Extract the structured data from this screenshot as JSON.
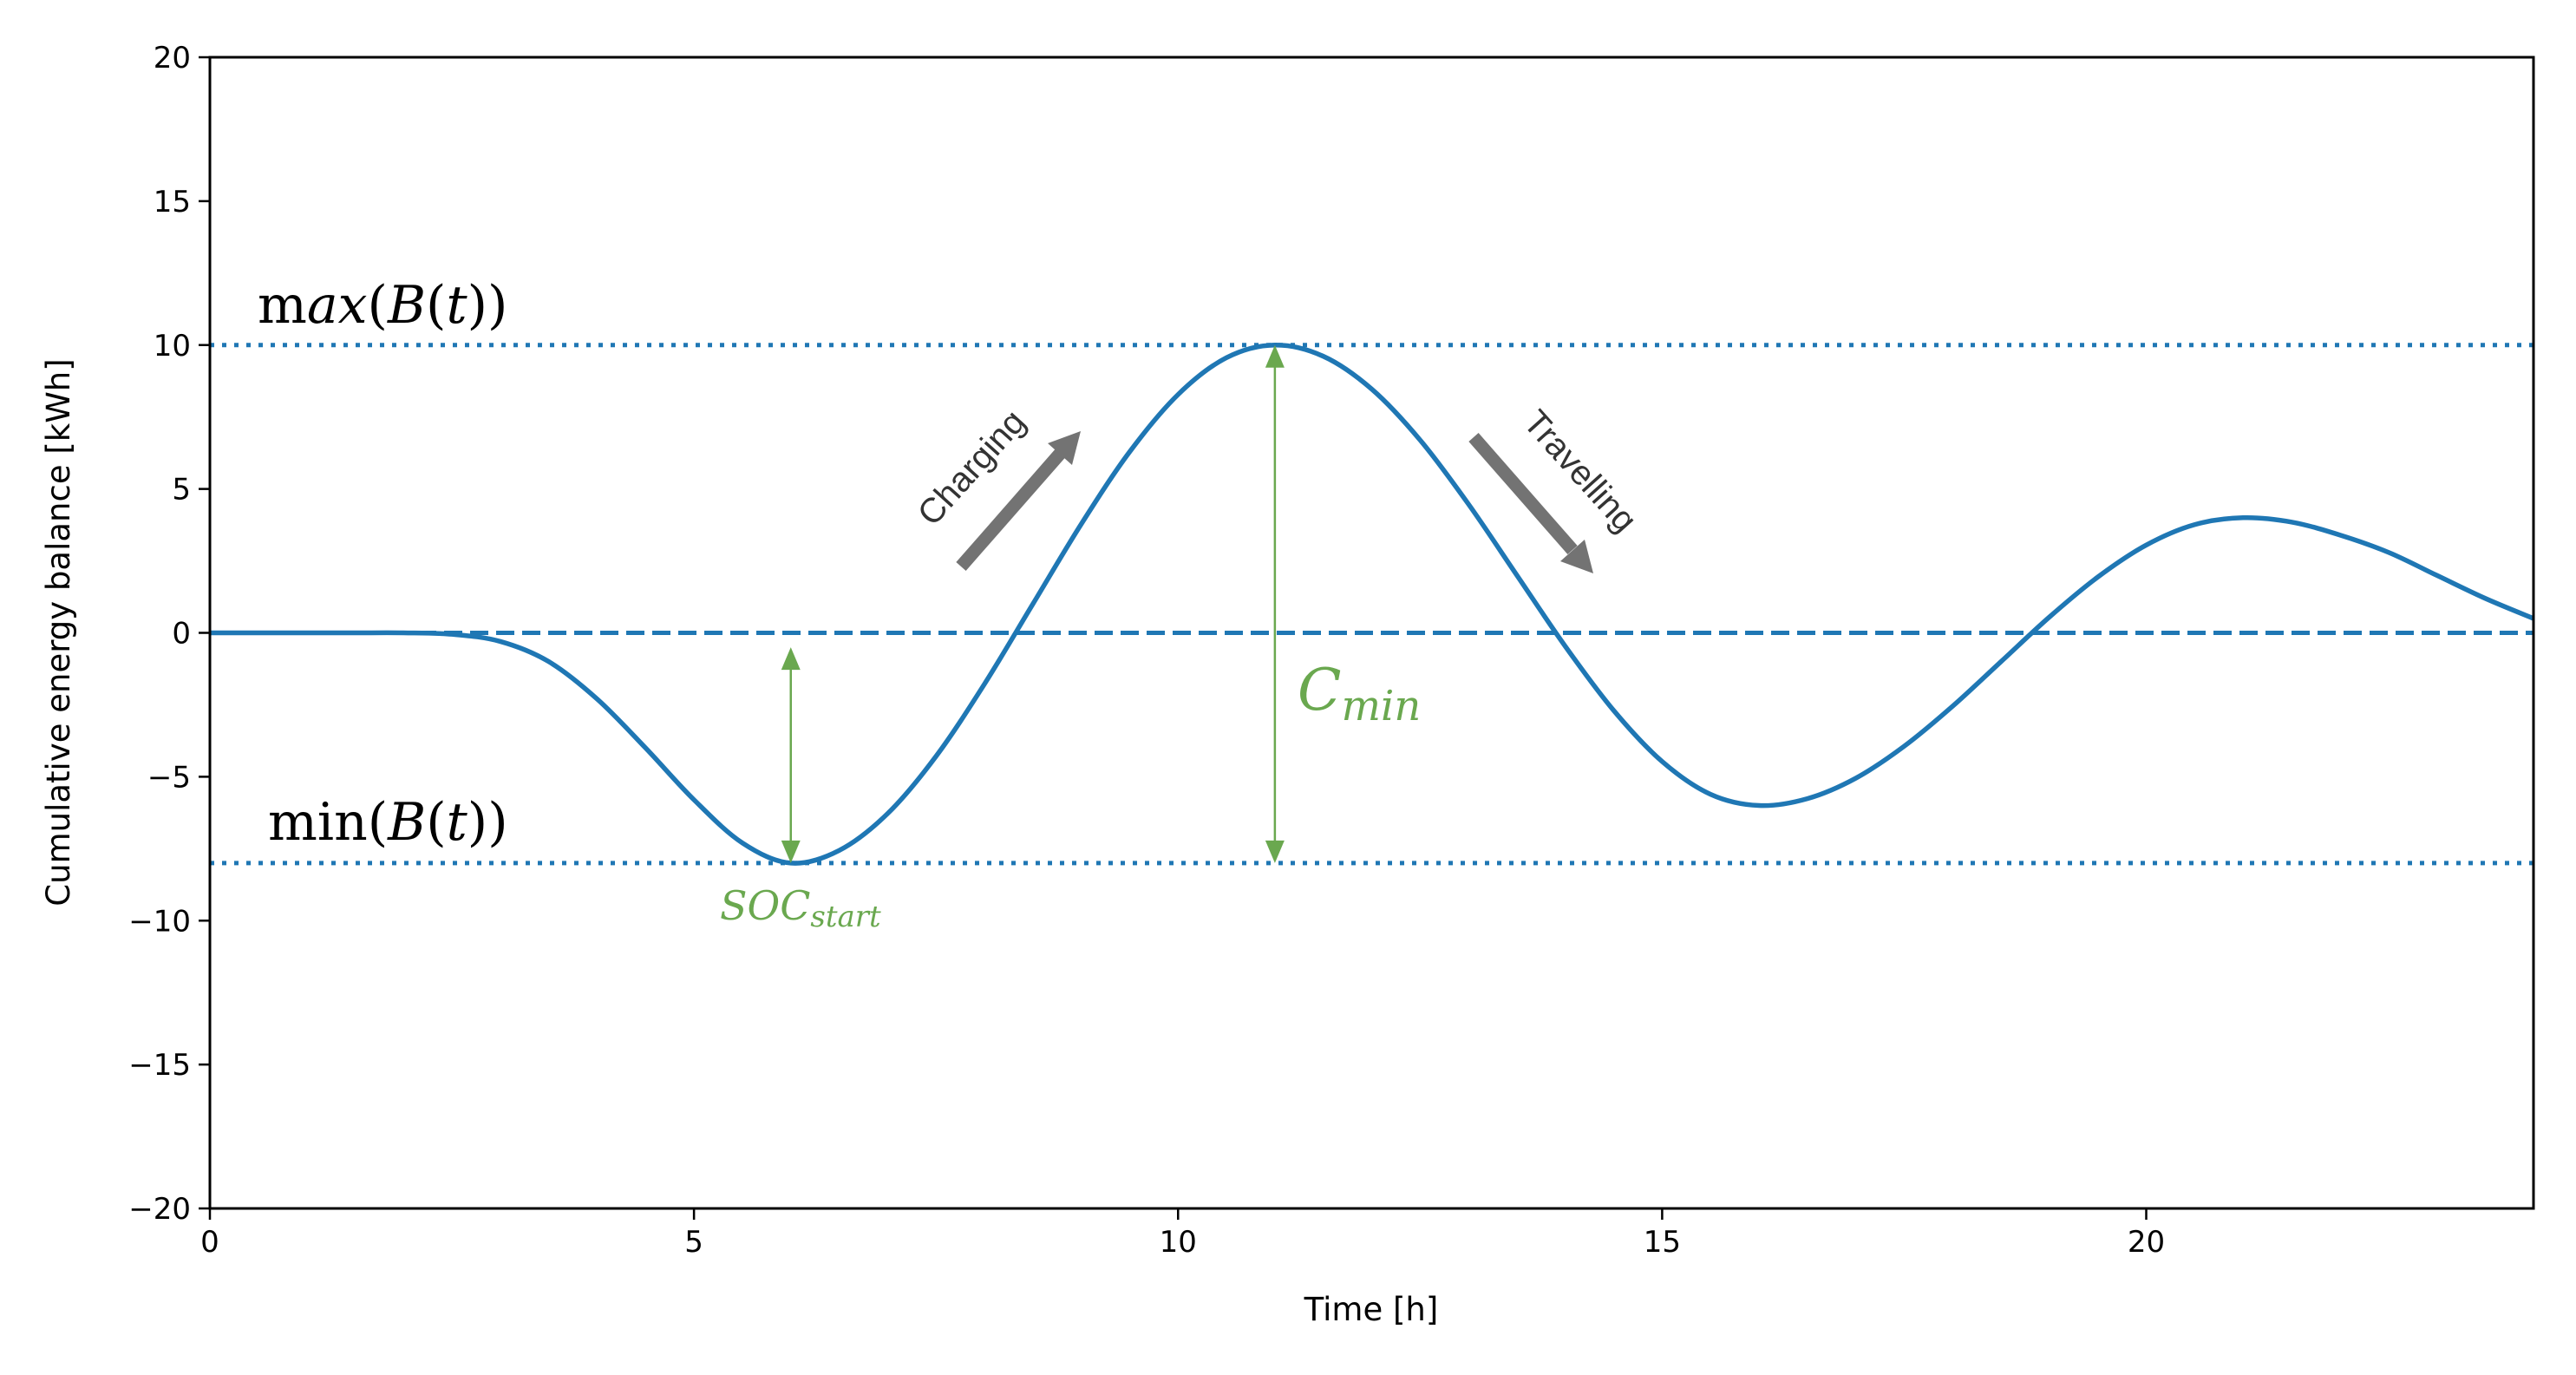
{
  "chart_data": {
    "type": "line",
    "title": "",
    "xlabel": "Time [h]",
    "ylabel": "Cumulative energy balance [kWh]",
    "xlim": [
      0,
      24
    ],
    "ylim": [
      -20,
      20
    ],
    "xticks": [
      0,
      5,
      10,
      15,
      20
    ],
    "yticks": [
      -20,
      -15,
      -10,
      -5,
      0,
      5,
      10,
      15,
      20
    ],
    "xtick_labels": [
      "0",
      "5",
      "10",
      "15",
      "20"
    ],
    "ytick_labels": [
      "−20",
      "−15",
      "−10",
      "−5",
      "0",
      "5",
      "10",
      "15",
      "20"
    ],
    "grid": false,
    "series": [
      {
        "color": "#1f77b4",
        "x": [
          0,
          0.5,
          1,
          1.5,
          2,
          2.5,
          3,
          3.5,
          4,
          4.5,
          5,
          5.5,
          6,
          6.5,
          7,
          7.5,
          8,
          8.5,
          9,
          9.5,
          10,
          10.5,
          11,
          11.5,
          12,
          12.5,
          13,
          13.5,
          14,
          14.5,
          15,
          15.5,
          16,
          16.5,
          17,
          17.5,
          18,
          18.5,
          19,
          19.5,
          20,
          20.5,
          21,
          21.5,
          22,
          22.5,
          23,
          23.5,
          24
        ],
        "y": [
          0,
          0,
          0,
          0,
          0,
          -0.05,
          -0.3,
          -1.0,
          -2.3,
          -4.0,
          -5.8,
          -7.3,
          -8,
          -7.56,
          -6.28,
          -4.29,
          -1.78,
          1,
          3.78,
          6.29,
          8.28,
          9.56,
          10,
          9.61,
          8.47,
          6.7,
          4.47,
          2,
          -0.47,
          -2.7,
          -4.47,
          -5.61,
          -6,
          -5.76,
          -5.05,
          -3.94,
          -2.55,
          -1,
          0.55,
          1.94,
          3.05,
          3.76,
          4,
          3.85,
          3.4,
          2.8,
          2.0,
          1.2,
          0.5
        ]
      }
    ],
    "reference_lines": [
      {
        "y": 10,
        "style": "dotted",
        "color": "#1f77b4"
      },
      {
        "y": 0,
        "style": "dashed",
        "color": "#1f77b4"
      },
      {
        "y": -8,
        "style": "dotted",
        "color": "#1f77b4"
      }
    ],
    "annotations": {
      "max_label": {
        "prefix": "m",
        "italic": "ax",
        "open": "(",
        "B": "B",
        "t": "t",
        "close": "))"
      },
      "min_label": {
        "prefix": "min(",
        "B": "B",
        "t": "t",
        "close": "))"
      },
      "soc_start": {
        "main": "SOC",
        "sub": "start",
        "color": "#6aa84f",
        "x": 6,
        "from": -0.5,
        "to": -8
      },
      "c_min": {
        "main": "C",
        "sub": "min",
        "color": "#6aa84f",
        "x": 11,
        "from": 10,
        "to": -8
      },
      "charging": "Charging",
      "travelling": "Travelling",
      "arrow_color": "#737373"
    }
  }
}
